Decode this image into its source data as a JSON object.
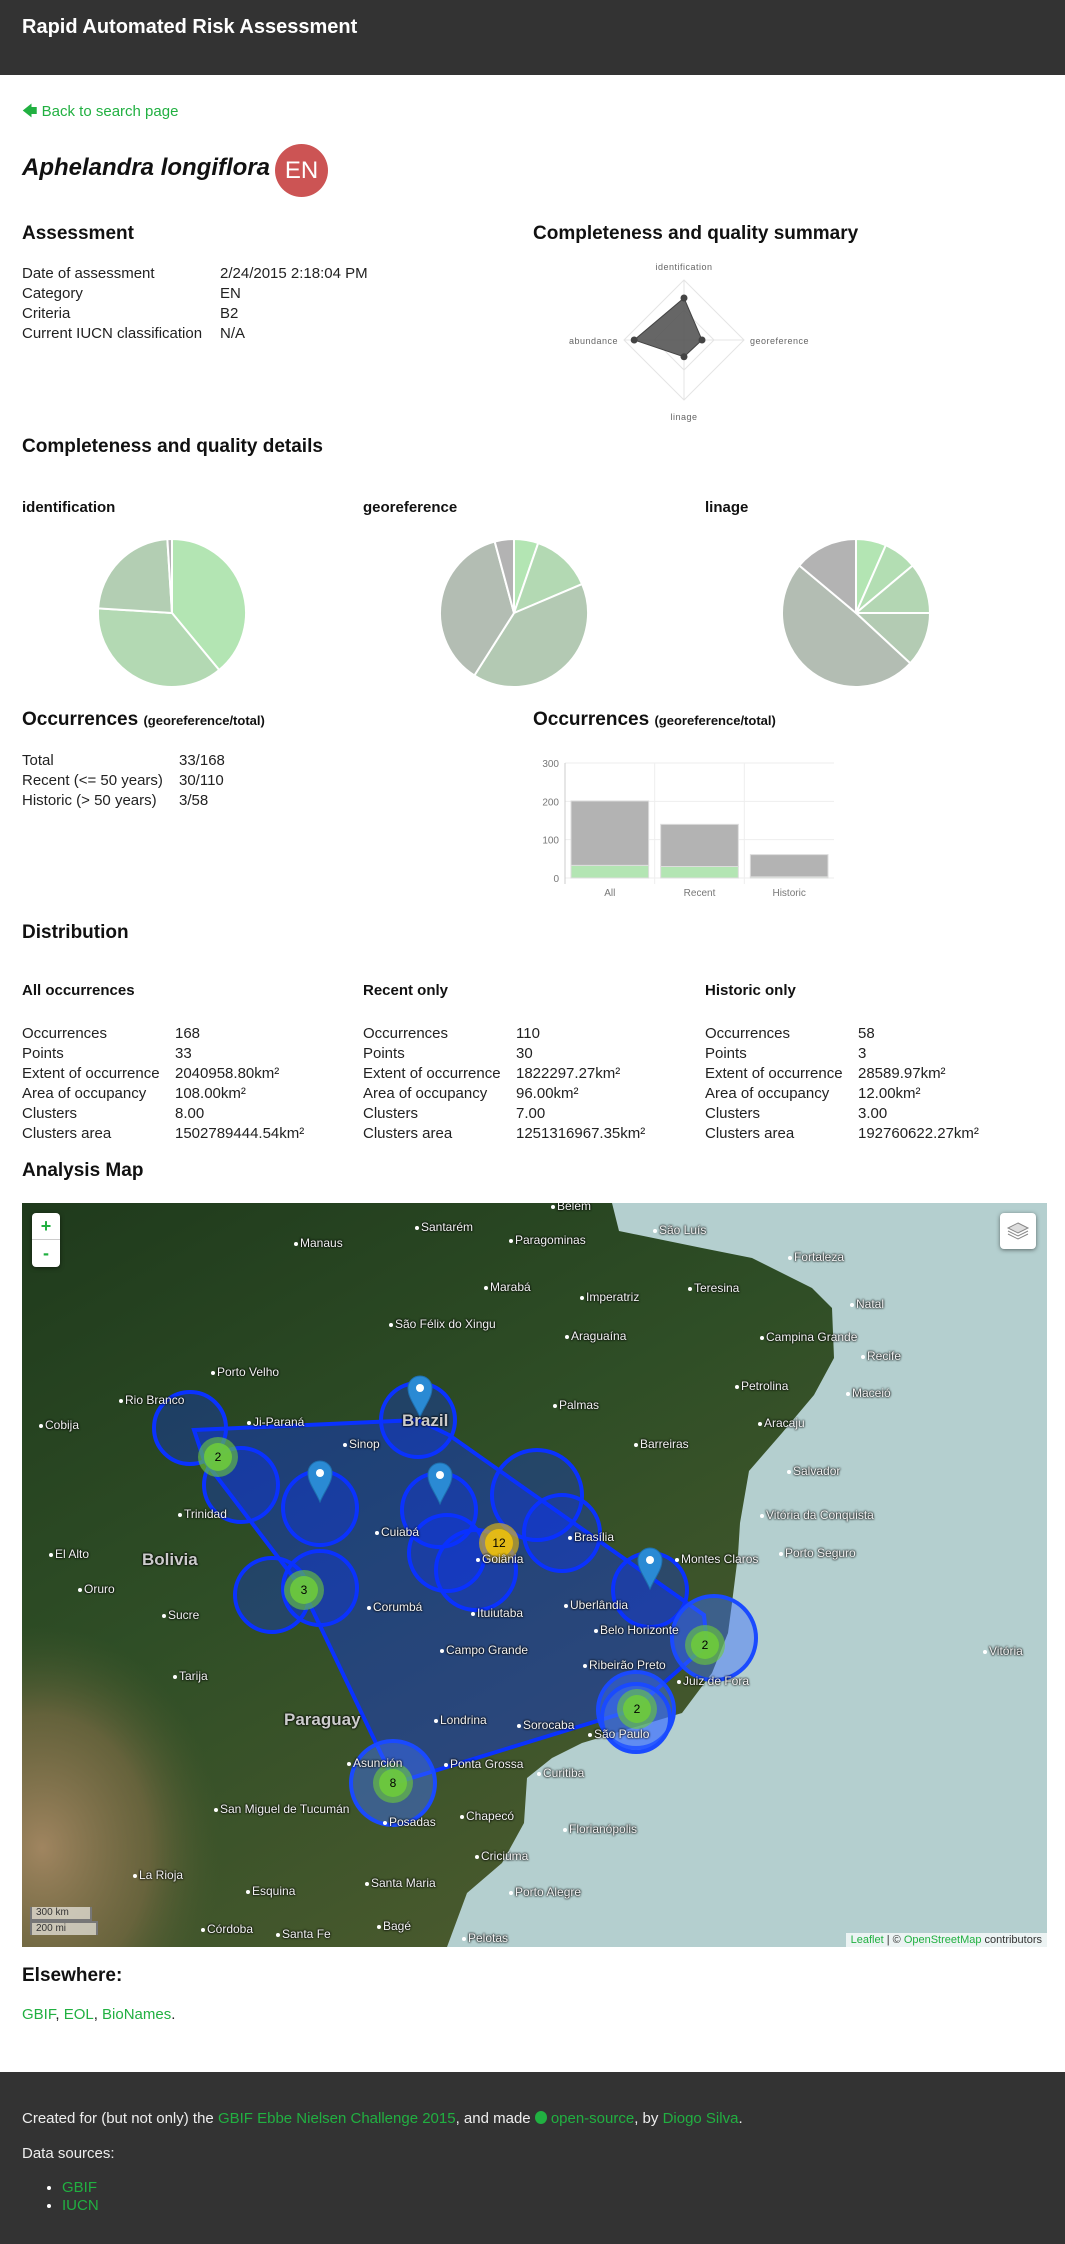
{
  "header": {
    "title": "Rapid Automated Risk Assessment"
  },
  "back_link": {
    "icon": "arrow-left-icon",
    "label": "Back to search page"
  },
  "species": {
    "name": "Aphelandra longiflora",
    "category_badge": "EN",
    "badge_color": "#cc5454"
  },
  "assessment": {
    "heading": "Assessment",
    "rows": [
      {
        "label": "Date of assessment",
        "value": "2/24/2015 2:18:04 PM"
      },
      {
        "label": "Category",
        "value": "EN"
      },
      {
        "label": "Criteria",
        "value": "B2"
      },
      {
        "label": "Current IUCN classification",
        "value": "N/A"
      }
    ]
  },
  "summary": {
    "heading": "Completeness and quality summary"
  },
  "details": {
    "heading": "Completeness and quality details"
  },
  "occurrences": {
    "heading": "Occurrences",
    "subheading": "(georeference/total)",
    "rows": [
      {
        "label": "Total",
        "value": "33/168"
      },
      {
        "label": "Recent (<= 50 years)",
        "value": "30/110"
      },
      {
        "label": "Historic (> 50 years)",
        "value": "3/58"
      }
    ]
  },
  "occurrences_chart": {
    "heading": "Occurrences",
    "subheading": "(georeference/total)"
  },
  "chart_data": [
    {
      "type": "radar",
      "axes": [
        "identification",
        "georeference",
        "linage",
        "abundance"
      ],
      "values": [
        0.7,
        0.3,
        0.28,
        0.83
      ],
      "range": [
        0,
        1
      ],
      "fill_color": "#555555"
    },
    {
      "type": "pie",
      "title": "identification",
      "values": [
        0.39,
        0.37,
        0.23,
        0.01
      ],
      "colors": [
        "#b3e5b3",
        "#b3d9b3",
        "#b3ceb3",
        "#b3b3b3"
      ]
    },
    {
      "type": "pie",
      "title": "georeference",
      "values": [
        0.053,
        0.133,
        0.404,
        0.368,
        0.042
      ],
      "colors": [
        "#b3e5b3",
        "#b3d9b3",
        "#b3c9b3",
        "#b3bdb3",
        "#b3b3b3"
      ]
    },
    {
      "type": "pie",
      "title": "linage",
      "values": [
        0.066,
        0.073,
        0.111,
        0.119,
        0.492,
        0.139
      ],
      "colors": [
        "#b3e5b3",
        "#b3deb3",
        "#b3d6b3",
        "#b3cbb3",
        "#b3bdb3",
        "#b3b3b3"
      ]
    },
    {
      "type": "bar",
      "stacked": true,
      "categories": [
        "All",
        "Recent",
        "Historic"
      ],
      "series": [
        {
          "values": [
            33,
            30,
            3
          ],
          "color": "#b3e5b3"
        },
        {
          "values": [
            168,
            110,
            58
          ],
          "color": "#b3b3b3"
        }
      ],
      "yticks": [
        0,
        100,
        200,
        300
      ],
      "ylim": [
        0,
        300
      ],
      "grid": true
    }
  ],
  "distribution": {
    "heading": "Distribution",
    "groups": [
      {
        "title": "All occurrences",
        "rows": [
          {
            "label": "Occurrences",
            "value": "168"
          },
          {
            "label": "Points",
            "value": "33"
          },
          {
            "label": "Extent of occurrence",
            "value": "2040958.80km²"
          },
          {
            "label": "Area of occupancy",
            "value": "108.00km²"
          },
          {
            "label": "Clusters",
            "value": "8.00"
          },
          {
            "label": "Clusters area",
            "value": "1502789444.54km²"
          }
        ]
      },
      {
        "title": "Recent only",
        "rows": [
          {
            "label": "Occurrences",
            "value": "110"
          },
          {
            "label": "Points",
            "value": "30"
          },
          {
            "label": "Extent of occurrence",
            "value": "1822297.27km²"
          },
          {
            "label": "Area of occupancy",
            "value": "96.00km²"
          },
          {
            "label": "Clusters",
            "value": "7.00"
          },
          {
            "label": "Clusters area",
            "value": "1251316967.35km²"
          }
        ]
      },
      {
        "title": "Historic only",
        "rows": [
          {
            "label": "Occurrences",
            "value": "58"
          },
          {
            "label": "Points",
            "value": "3"
          },
          {
            "label": "Extent of occurrence",
            "value": "28589.97km²"
          },
          {
            "label": "Area of occupancy",
            "value": "12.00km²"
          },
          {
            "label": "Clusters",
            "value": "3.00"
          },
          {
            "label": "Clusters area",
            "value": "192760622.27km²"
          }
        ]
      }
    ]
  },
  "map": {
    "heading": "Analysis Map",
    "zoom_in": "+",
    "zoom_out": "-",
    "layers_icon": "layers-icon",
    "scale_km": "300 km",
    "scale_mi": "200 mi",
    "attribution": {
      "leaflet": "Leaflet",
      "sep": " | © ",
      "osm": "OpenStreetMap",
      "suffix": " contributors"
    },
    "cluster_counts": [
      "2",
      "3",
      "12",
      "2",
      "2",
      "8"
    ],
    "places": [
      "Belém",
      "Santarém",
      "Manaus",
      "São Luís",
      "Paragominas",
      "Fortaleza",
      "Marabá",
      "Imperatriz",
      "Teresina",
      "Natal",
      "São Félix do Xingu",
      "Araguaína",
      "Campina Grande",
      "Recife",
      "Porto Velho",
      "Petrolina",
      "Maceió",
      "Rio Branco",
      "Palmas",
      "Cobija",
      "Ji-Paraná",
      "Aracaju",
      "Sinop",
      "Barreiras",
      "Salvador",
      "Trinidad",
      "Cuiabá",
      "Vitória da Conquista",
      "Brasília",
      "Goiânia",
      "El Alto",
      "Porto Seguro",
      "Montes Claros",
      "Oruro",
      "Corumbá",
      "Uberlândia",
      "Ituiutaba",
      "Sucre",
      "Belo Horizonte",
      "Vitória",
      "Campo Grande",
      "Ribeirão Preto",
      "Tarija",
      "Juiz de Fora",
      "Londrina",
      "Sorocaba",
      "São Paulo",
      "Asunción",
      "Ponta Grossa",
      "Curitiba",
      "San Miguel de Tucumán",
      "Chapecó",
      "Posadas",
      "Florianópolis",
      "Criciúma",
      "La Rioja",
      "Esquina",
      "Santa Maria",
      "Porto Alegre",
      "Córdoba",
      "Santa Fe",
      "Bagé",
      "Pelotas"
    ],
    "countries": [
      "Brazil",
      "Bolivia",
      "Paraguay"
    ]
  },
  "elsewhere": {
    "heading": "Elsewhere:",
    "links": [
      "GBIF",
      "EOL",
      "BioNames"
    ]
  },
  "footer": {
    "created_prefix": "Created for (but not only) the ",
    "challenge_link": "GBIF Ebbe Nielsen Challenge 2015",
    "made_text": ", and made ",
    "github_icon": "github-icon",
    "opensource_link": "open-source",
    "by_text": ", by ",
    "author_link": "Diogo Silva",
    "period": ".",
    "data_sources_label": "Data sources:",
    "sources": [
      "GBIF",
      "IUCN"
    ]
  },
  "colors": {
    "link": "#21b041",
    "header_bg": "#333333",
    "polygon": "#0a32ff"
  }
}
